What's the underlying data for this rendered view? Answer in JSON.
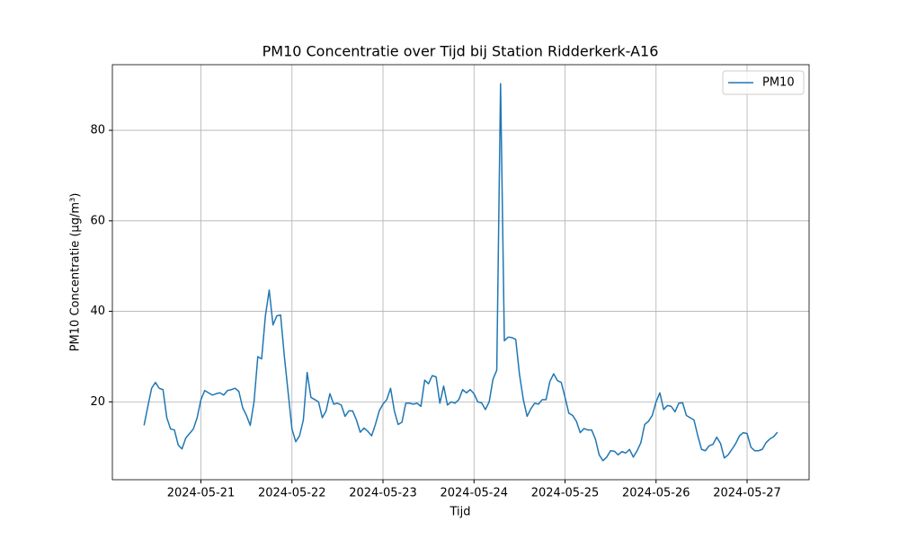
{
  "chart_data": {
    "type": "line",
    "title": "PM10 Concentratie over Tijd bij Station Ridderkerk-A16",
    "x_label": "Tijd",
    "y_label": "PM10 Concentratie (µg/m³)",
    "x": [
      "2024-05-20 09:00",
      "2024-05-20 10:00",
      "2024-05-20 11:00",
      "2024-05-20 12:00",
      "2024-05-20 13:00",
      "2024-05-20 14:00",
      "2024-05-20 15:00",
      "2024-05-20 16:00",
      "2024-05-20 17:00",
      "2024-05-20 18:00",
      "2024-05-20 19:00",
      "2024-05-20 20:00",
      "2024-05-20 21:00",
      "2024-05-20 22:00",
      "2024-05-20 23:00",
      "2024-05-21 00:00",
      "2024-05-21 01:00",
      "2024-05-21 02:00",
      "2024-05-21 03:00",
      "2024-05-21 04:00",
      "2024-05-21 05:00",
      "2024-05-21 06:00",
      "2024-05-21 07:00",
      "2024-05-21 08:00",
      "2024-05-21 09:00",
      "2024-05-21 10:00",
      "2024-05-21 11:00",
      "2024-05-21 12:00",
      "2024-05-21 13:00",
      "2024-05-21 14:00",
      "2024-05-21 15:00",
      "2024-05-21 16:00",
      "2024-05-21 17:00",
      "2024-05-21 18:00",
      "2024-05-21 19:00",
      "2024-05-21 20:00",
      "2024-05-21 21:00",
      "2024-05-21 22:00",
      "2024-05-21 23:00",
      "2024-05-22 00:00",
      "2024-05-22 01:00",
      "2024-05-22 02:00",
      "2024-05-22 03:00",
      "2024-05-22 04:00",
      "2024-05-22 05:00",
      "2024-05-22 06:00",
      "2024-05-22 07:00",
      "2024-05-22 08:00",
      "2024-05-22 09:00",
      "2024-05-22 10:00",
      "2024-05-22 11:00",
      "2024-05-22 12:00",
      "2024-05-22 13:00",
      "2024-05-22 14:00",
      "2024-05-22 15:00",
      "2024-05-22 16:00",
      "2024-05-22 17:00",
      "2024-05-22 18:00",
      "2024-05-22 19:00",
      "2024-05-22 20:00",
      "2024-05-22 21:00",
      "2024-05-22 22:00",
      "2024-05-22 23:00",
      "2024-05-23 00:00",
      "2024-05-23 01:00",
      "2024-05-23 02:00",
      "2024-05-23 03:00",
      "2024-05-23 04:00",
      "2024-05-23 05:00",
      "2024-05-23 06:00",
      "2024-05-23 07:00",
      "2024-05-23 08:00",
      "2024-05-23 09:00",
      "2024-05-23 10:00",
      "2024-05-23 11:00",
      "2024-05-23 12:00",
      "2024-05-23 13:00",
      "2024-05-23 14:00",
      "2024-05-23 15:00",
      "2024-05-23 16:00",
      "2024-05-23 17:00",
      "2024-05-23 18:00",
      "2024-05-23 19:00",
      "2024-05-23 20:00",
      "2024-05-23 21:00",
      "2024-05-23 22:00",
      "2024-05-23 23:00",
      "2024-05-24 00:00",
      "2024-05-24 01:00",
      "2024-05-24 02:00",
      "2024-05-24 03:00",
      "2024-05-24 04:00",
      "2024-05-24 05:00",
      "2024-05-24 06:00",
      "2024-05-24 07:00",
      "2024-05-24 08:00",
      "2024-05-24 09:00",
      "2024-05-24 10:00",
      "2024-05-24 11:00",
      "2024-05-24 12:00",
      "2024-05-24 13:00",
      "2024-05-24 14:00",
      "2024-05-24 15:00",
      "2024-05-24 16:00",
      "2024-05-24 17:00",
      "2024-05-24 18:00",
      "2024-05-24 19:00",
      "2024-05-24 20:00",
      "2024-05-24 21:00",
      "2024-05-24 22:00",
      "2024-05-24 23:00",
      "2024-05-25 00:00",
      "2024-05-25 01:00",
      "2024-05-25 02:00",
      "2024-05-25 03:00",
      "2024-05-25 04:00",
      "2024-05-25 05:00",
      "2024-05-25 06:00",
      "2024-05-25 07:00",
      "2024-05-25 08:00",
      "2024-05-25 09:00",
      "2024-05-25 10:00",
      "2024-05-25 11:00",
      "2024-05-25 12:00",
      "2024-05-25 13:00",
      "2024-05-25 14:00",
      "2024-05-25 15:00",
      "2024-05-25 16:00",
      "2024-05-25 17:00",
      "2024-05-25 18:00",
      "2024-05-25 19:00",
      "2024-05-25 20:00",
      "2024-05-25 21:00",
      "2024-05-25 22:00",
      "2024-05-25 23:00",
      "2024-05-26 00:00",
      "2024-05-26 01:00",
      "2024-05-26 02:00",
      "2024-05-26 03:00",
      "2024-05-26 04:00",
      "2024-05-26 05:00",
      "2024-05-26 06:00",
      "2024-05-26 07:00",
      "2024-05-26 08:00",
      "2024-05-26 09:00",
      "2024-05-26 10:00",
      "2024-05-26 11:00",
      "2024-05-26 12:00",
      "2024-05-26 13:00",
      "2024-05-26 14:00",
      "2024-05-26 15:00",
      "2024-05-26 16:00",
      "2024-05-26 17:00",
      "2024-05-26 18:00",
      "2024-05-26 19:00",
      "2024-05-26 20:00",
      "2024-05-26 21:00",
      "2024-05-26 22:00",
      "2024-05-26 23:00",
      "2024-05-27 00:00",
      "2024-05-27 01:00",
      "2024-05-27 02:00",
      "2024-05-27 03:00",
      "2024-05-27 04:00",
      "2024-05-27 05:00",
      "2024-05-27 06:00",
      "2024-05-27 07:00",
      "2024-05-27 08:00"
    ],
    "series": [
      {
        "name": "PM10",
        "color": "#1f77b4",
        "values": [
          14.8,
          19,
          23,
          24.3,
          23,
          22.7,
          16.5,
          14,
          13.8,
          10.5,
          9.6,
          12,
          13,
          14,
          16.5,
          20.5,
          22.5,
          22,
          21.5,
          21.8,
          22,
          21.5,
          22.5,
          22.7,
          23,
          22.3,
          18.7,
          17,
          14.8,
          20,
          30,
          29.5,
          39,
          44.7,
          37,
          39,
          39.2,
          30,
          22,
          14,
          11.2,
          12.5,
          16,
          26.5,
          21,
          20.5,
          20,
          16.5,
          18,
          21.8,
          19.5,
          19.7,
          19.3,
          16.8,
          18,
          18,
          16,
          13.3,
          14.2,
          13.5,
          12.5,
          15,
          18,
          19.5,
          20.5,
          23,
          18,
          15,
          15.5,
          19.7,
          19.7,
          19.5,
          19.7,
          19,
          24.8,
          24,
          25.8,
          25.5,
          19.7,
          23.5,
          19.3,
          20,
          19.7,
          20.5,
          22.7,
          22,
          22.7,
          21.8,
          20,
          19.8,
          18.3,
          20,
          25,
          27,
          90.3,
          33.5,
          34.3,
          34.2,
          33.8,
          26,
          20.5,
          16.8,
          18.5,
          19.7,
          19.5,
          20.5,
          20.5,
          24.5,
          26.2,
          24.7,
          24.3,
          21,
          17.5,
          17,
          15.7,
          13.2,
          14.1,
          13.8,
          13.8,
          11.8,
          8.3,
          7,
          7.8,
          9.2,
          9.1,
          8.3,
          9,
          8.7,
          9.5,
          7.8,
          9.2,
          11,
          15,
          15.7,
          17,
          20,
          22,
          18.3,
          19.2,
          19,
          17.8,
          19.7,
          19.8,
          17,
          16.5,
          16,
          12.5,
          9.5,
          9.2,
          10.3,
          10.6,
          12.2,
          10.8,
          7.6,
          8.3,
          9.5,
          10.8,
          12.5,
          13.2,
          13,
          10,
          9.2,
          9.2,
          9.5,
          11,
          11.8,
          12.3,
          13.3
        ]
      }
    ],
    "xlim": [
      "2024-05-20 00:39",
      "2024-05-27 16:21"
    ],
    "xticks": [
      "2024-05-21",
      "2024-05-22",
      "2024-05-23",
      "2024-05-24",
      "2024-05-25",
      "2024-05-26",
      "2024-05-27"
    ],
    "ylim": [
      2.8,
      94.5
    ],
    "yticks": [
      20,
      40,
      60,
      80
    ],
    "grid": true,
    "legend": "upper-right"
  }
}
